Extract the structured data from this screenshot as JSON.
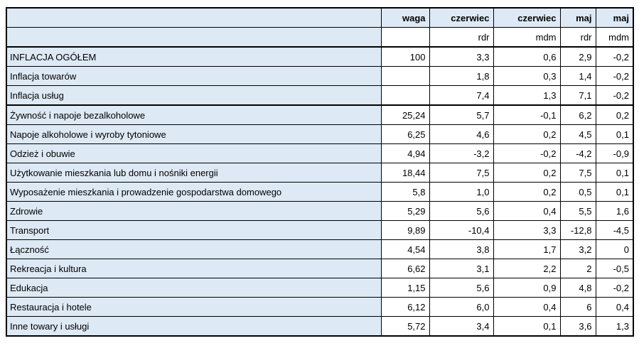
{
  "table": {
    "header": {
      "row1": [
        "",
        "waga",
        "czerwiec",
        "czerwiec",
        "maj",
        "maj"
      ],
      "row2": [
        "",
        "",
        "rdr",
        "mdm",
        "rdr",
        "mdm"
      ]
    },
    "rows": [
      {
        "label": "INFLACJA OGÓŁEM",
        "values": [
          "100",
          "3,3",
          "0,6",
          "2,9",
          "-0,2"
        ],
        "section_start": true
      },
      {
        "label": "Inflacja towarów",
        "values": [
          "",
          "1,8",
          "0,3",
          "1,4",
          "-0,2"
        ],
        "section_start": false
      },
      {
        "label": "Inflacja usług",
        "values": [
          "",
          "7,4",
          "1,3",
          "7,1",
          "-0,2"
        ],
        "section_start": false
      },
      {
        "label": "Żywność i napoje bezalkoholowe",
        "values": [
          "25,24",
          "5,7",
          "-0,1",
          "6,2",
          "0,2"
        ],
        "section_start": true
      },
      {
        "label": "Napoje alkoholowe i wyroby tytoniowe",
        "values": [
          "6,25",
          "4,6",
          "0,2",
          "4,5",
          "0,1"
        ],
        "section_start": false
      },
      {
        "label": "Odzież i obuwie",
        "values": [
          "4,94",
          "-3,2",
          "-0,2",
          "-4,2",
          "-0,9"
        ],
        "section_start": false
      },
      {
        "label": "Użytkowanie mieszkania lub domu i nośniki energii",
        "values": [
          "18,44",
          "7,5",
          "0,2",
          "7,5",
          "0,1"
        ],
        "section_start": false
      },
      {
        "label": "Wyposażenie mieszkania i prowadzenie gospodarstwa domowego",
        "values": [
          "5,8",
          "1,0",
          "0,2",
          "0,5",
          "0,1"
        ],
        "section_start": false
      },
      {
        "label": "Zdrowie",
        "values": [
          "5,29",
          "5,6",
          "0,4",
          "5,5",
          "1,6"
        ],
        "section_start": false
      },
      {
        "label": "Transport",
        "values": [
          "9,89",
          "-10,4",
          "3,3",
          "-12,8",
          "-4,5"
        ],
        "section_start": false
      },
      {
        "label": "Łączność",
        "values": [
          "4,54",
          "3,8",
          "1,7",
          "3,2",
          "0"
        ],
        "section_start": false
      },
      {
        "label": "Rekreacja i kultura",
        "values": [
          "6,62",
          "3,1",
          "2,2",
          "2",
          "-0,5"
        ],
        "section_start": false
      },
      {
        "label": "Edukacja",
        "values": [
          "1,15",
          "5,6",
          "0,9",
          "4,8",
          "-0,2"
        ],
        "section_start": false
      },
      {
        "label": "Restauracja i hotele",
        "values": [
          "6,12",
          "6,0",
          "0,4",
          "6",
          "0,4"
        ],
        "section_start": false
      },
      {
        "label": "Inne towary i usługi",
        "values": [
          "5,72",
          "3,4",
          "0,1",
          "3,6",
          "1,3"
        ],
        "section_start": false
      }
    ]
  },
  "colors": {
    "label_bg": "#dde9f4",
    "border": "#000000",
    "text": "#000000",
    "page_bg": "#ffffff"
  }
}
